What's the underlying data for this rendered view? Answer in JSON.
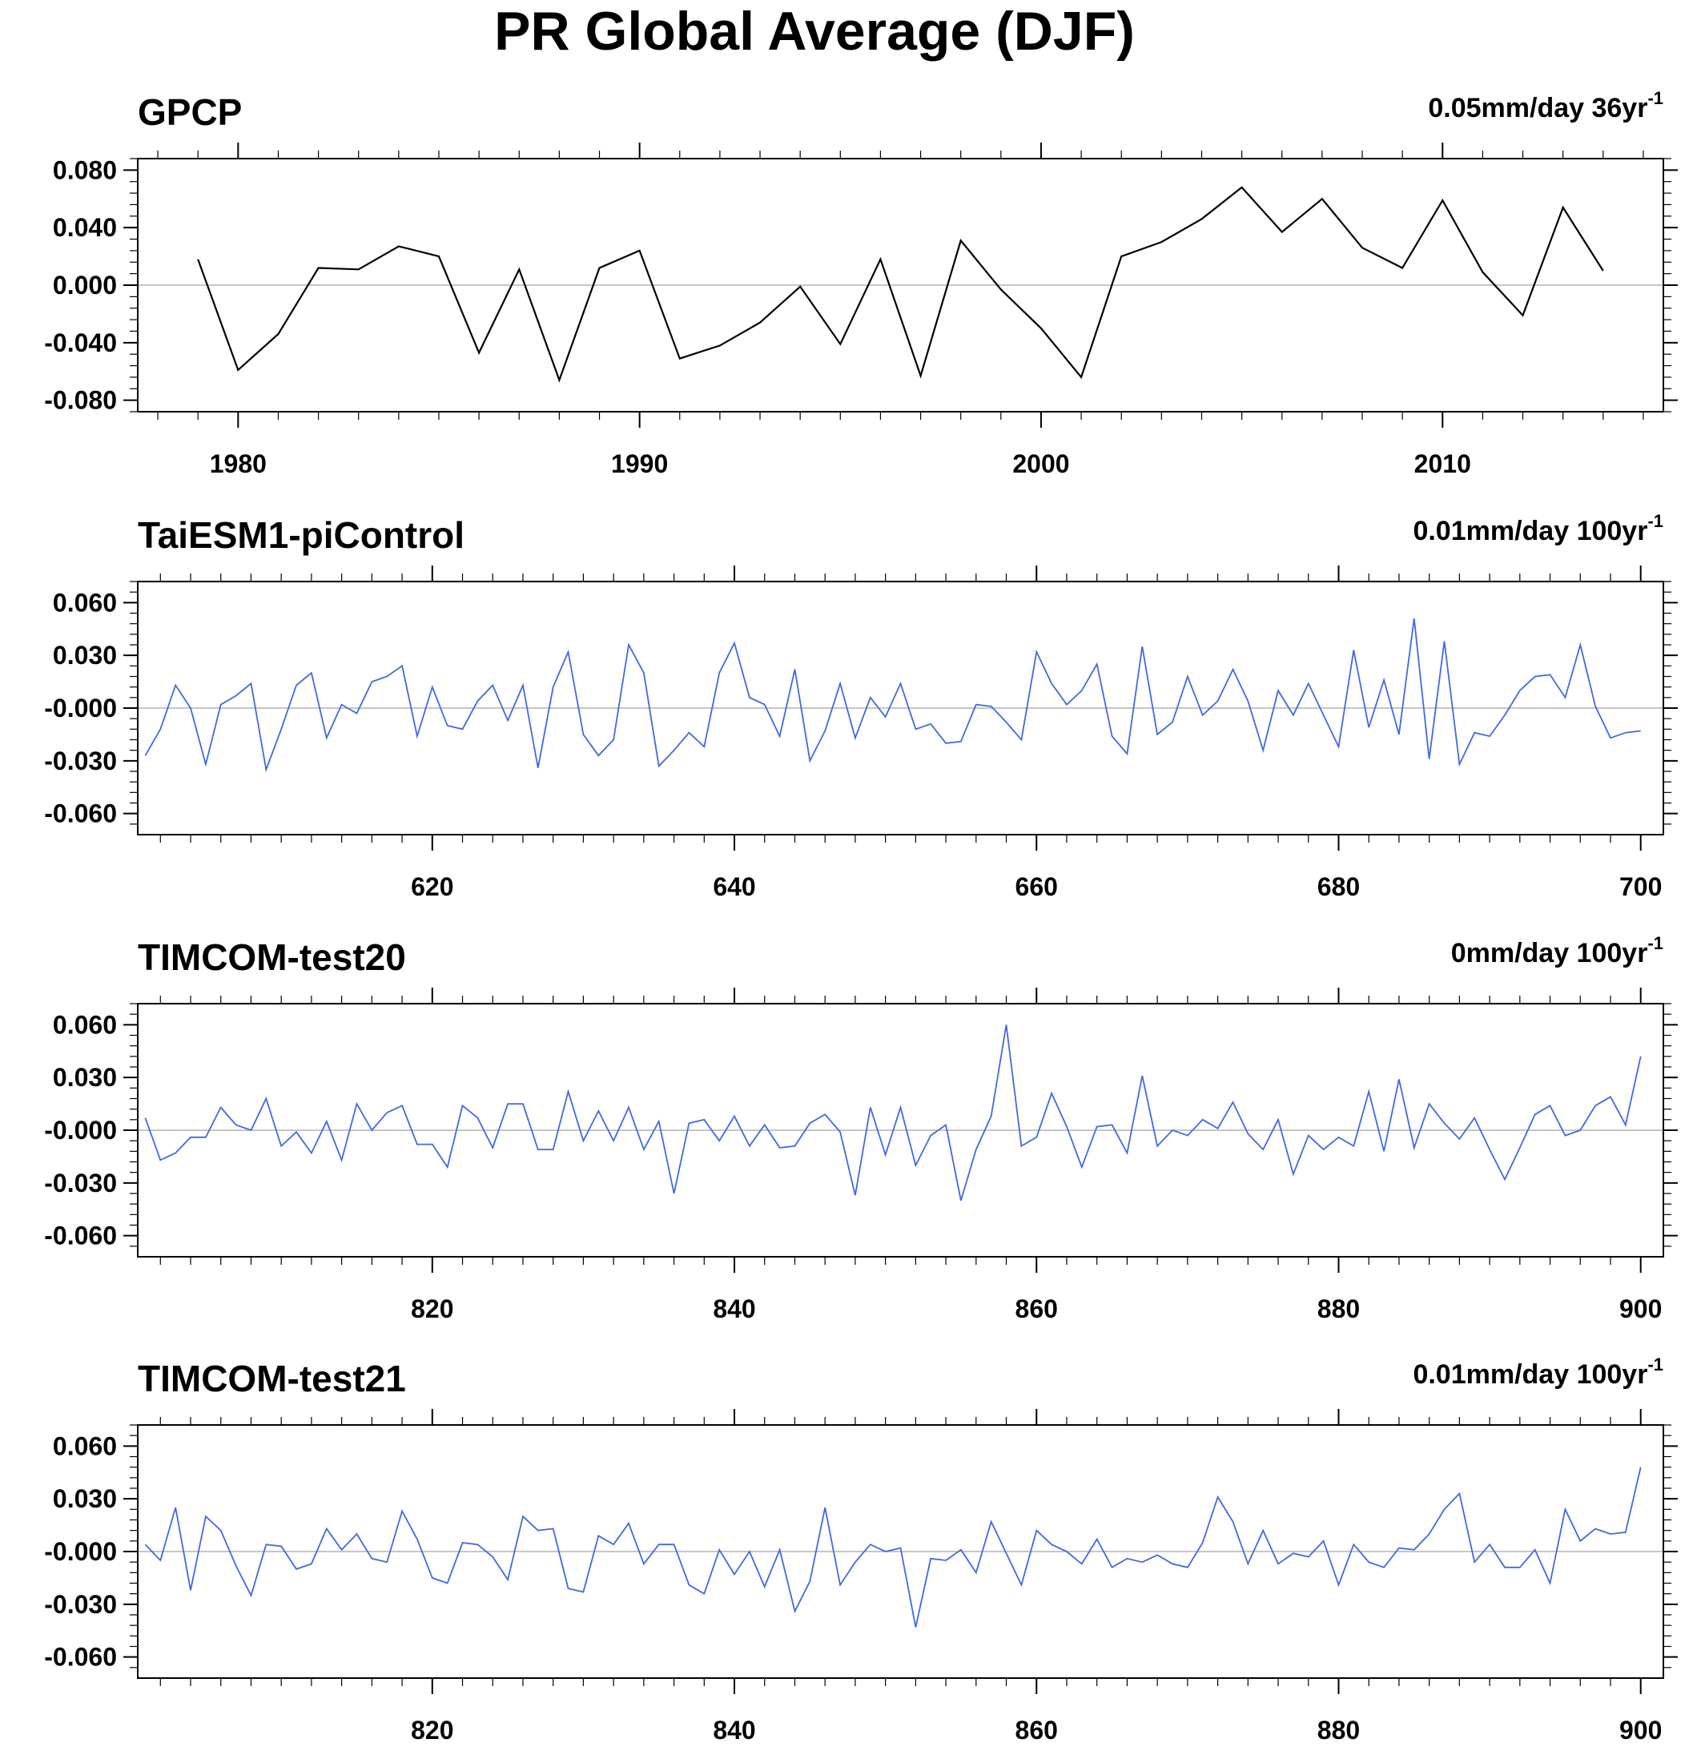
{
  "title": "PR Global Average (DJF)",
  "chart_data": [
    {
      "type": "line",
      "title": "GPCP",
      "trend": {
        "text": "0.05mm/day 36yr",
        "sup": "-1"
      },
      "color": "#000000",
      "xlim": [
        1977.5,
        2015.5
      ],
      "ylim": [
        -0.088,
        0.088
      ],
      "yticks": [
        0.08,
        0.04,
        0.0,
        -0.04,
        -0.08
      ],
      "ytick_labels": [
        "0.080",
        "0.040",
        "0.000",
        "-0.040",
        "-0.080"
      ],
      "ytick_minor_step": 0.008,
      "xticks": [
        1980,
        1990,
        2000,
        2010
      ],
      "xtick_labels": [
        "1980",
        "1990",
        "2000",
        "2010"
      ],
      "xtick_minor_step": 1,
      "x_start": 1979,
      "x_step": 1,
      "values": [
        0.018,
        -0.059,
        -0.034,
        0.012,
        0.011,
        0.027,
        0.02,
        -0.047,
        0.011,
        -0.066,
        0.012,
        0.024,
        -0.051,
        -0.042,
        -0.026,
        -0.001,
        -0.041,
        0.018,
        -0.063,
        0.031,
        -0.003,
        -0.03,
        -0.064,
        0.02,
        0.03,
        0.046,
        0.068,
        0.037,
        0.06,
        0.026,
        0.012,
        0.059,
        0.009,
        -0.021,
        0.054,
        0.01
      ]
    },
    {
      "type": "line",
      "title": "TaiESM1-piControl",
      "trend": {
        "text": "0.01mm/day 100yr",
        "sup": "-1"
      },
      "color": "#4169e1",
      "xlim": [
        600.5,
        701.5
      ],
      "ylim": [
        -0.072,
        0.072
      ],
      "yticks": [
        0.06,
        0.03,
        0.0,
        -0.03,
        -0.06
      ],
      "ytick_labels": [
        "0.060",
        "0.030",
        "-0.000",
        "-0.030",
        "-0.060"
      ],
      "ytick_minor_step": 0.006,
      "xticks": [
        620,
        640,
        660,
        680,
        700
      ],
      "xtick_labels": [
        "620",
        "640",
        "660",
        "680",
        "700"
      ],
      "xtick_minor_step": 2,
      "x_start": 601,
      "x_step": 1,
      "values": [
        -0.027,
        -0.012,
        0.013,
        0.0,
        -0.032,
        0.002,
        0.007,
        0.014,
        -0.035,
        -0.012,
        0.013,
        0.02,
        -0.017,
        0.002,
        -0.003,
        0.015,
        0.018,
        0.024,
        -0.016,
        0.012,
        -0.01,
        -0.012,
        0.004,
        0.013,
        -0.007,
        0.013,
        -0.034,
        0.012,
        0.032,
        -0.015,
        -0.027,
        -0.018,
        0.036,
        0.02,
        -0.033,
        -0.024,
        -0.014,
        -0.022,
        0.02,
        0.037,
        0.006,
        0.002,
        -0.016,
        0.022,
        -0.03,
        -0.013,
        0.014,
        -0.017,
        0.006,
        -0.005,
        0.014,
        -0.012,
        -0.009,
        -0.02,
        -0.019,
        0.002,
        0.001,
        -0.008,
        -0.018,
        0.032,
        0.014,
        0.002,
        0.01,
        0.025,
        -0.016,
        -0.026,
        0.035,
        -0.015,
        -0.008,
        0.018,
        -0.004,
        0.004,
        0.022,
        0.004,
        -0.024,
        0.01,
        -0.004,
        0.014,
        -0.004,
        -0.022,
        0.033,
        -0.011,
        0.016,
        -0.015,
        0.051,
        -0.029,
        0.038,
        -0.032,
        -0.014,
        -0.016,
        -0.004,
        0.01,
        0.018,
        0.019,
        0.006,
        0.036,
        0.001,
        -0.017,
        -0.014,
        -0.013
      ]
    },
    {
      "type": "line",
      "title": "TIMCOM-test20",
      "trend": {
        "text": "0mm/day 100yr",
        "sup": "-1"
      },
      "color": "#4169e1",
      "xlim": [
        800.5,
        901.5
      ],
      "ylim": [
        -0.072,
        0.072
      ],
      "yticks": [
        0.06,
        0.03,
        0.0,
        -0.03,
        -0.06
      ],
      "ytick_labels": [
        "0.060",
        "0.030",
        "-0.000",
        "-0.030",
        "-0.060"
      ],
      "ytick_minor_step": 0.006,
      "xticks": [
        820,
        840,
        860,
        880,
        900
      ],
      "xtick_labels": [
        "820",
        "840",
        "860",
        "880",
        "900"
      ],
      "xtick_minor_step": 2,
      "x_start": 801,
      "x_step": 1,
      "values": [
        0.007,
        -0.017,
        -0.013,
        -0.004,
        -0.004,
        0.013,
        0.003,
        0.0,
        0.018,
        -0.009,
        -0.001,
        -0.013,
        0.005,
        -0.017,
        0.015,
        0.0,
        0.01,
        0.014,
        -0.008,
        -0.008,
        -0.021,
        0.014,
        0.007,
        -0.01,
        0.015,
        0.015,
        -0.011,
        -0.011,
        0.022,
        -0.006,
        0.011,
        -0.006,
        0.013,
        -0.011,
        0.005,
        -0.036,
        0.004,
        0.006,
        -0.006,
        0.008,
        -0.009,
        0.003,
        -0.01,
        -0.009,
        0.004,
        0.009,
        -0.001,
        -0.037,
        0.013,
        -0.014,
        0.013,
        -0.02,
        -0.003,
        0.003,
        -0.04,
        -0.011,
        0.008,
        0.06,
        -0.009,
        -0.004,
        0.021,
        0.002,
        -0.021,
        0.002,
        0.003,
        -0.013,
        0.031,
        -0.009,
        0.0,
        -0.003,
        0.006,
        0.001,
        0.016,
        -0.002,
        -0.011,
        0.006,
        -0.025,
        -0.003,
        -0.011,
        -0.004,
        -0.009,
        0.022,
        -0.012,
        0.029,
        -0.01,
        0.015,
        0.004,
        -0.005,
        0.007,
        -0.011,
        -0.028,
        -0.01,
        0.009,
        0.014,
        -0.003,
        0.0,
        0.014,
        0.019,
        0.003,
        0.042
      ]
    },
    {
      "type": "line",
      "title": "TIMCOM-test21",
      "trend": {
        "text": "0.01mm/day 100yr",
        "sup": "-1"
      },
      "color": "#4169e1",
      "xlim": [
        800.5,
        901.5
      ],
      "ylim": [
        -0.072,
        0.072
      ],
      "yticks": [
        0.06,
        0.03,
        0.0,
        -0.03,
        -0.06
      ],
      "ytick_labels": [
        "0.060",
        "0.030",
        "-0.000",
        "-0.030",
        "-0.060"
      ],
      "ytick_minor_step": 0.006,
      "xticks": [
        820,
        840,
        860,
        880,
        900
      ],
      "xtick_labels": [
        "820",
        "840",
        "860",
        "880",
        "900"
      ],
      "xtick_minor_step": 2,
      "x_start": 801,
      "x_step": 1,
      "values": [
        0.004,
        -0.005,
        0.025,
        -0.022,
        0.02,
        0.012,
        -0.008,
        -0.025,
        0.004,
        0.003,
        -0.01,
        -0.007,
        0.013,
        0.001,
        0.01,
        -0.004,
        -0.006,
        0.023,
        0.007,
        -0.015,
        -0.018,
        0.005,
        0.004,
        -0.003,
        -0.016,
        0.02,
        0.012,
        0.013,
        -0.021,
        -0.023,
        0.009,
        0.004,
        0.016,
        -0.007,
        0.004,
        0.004,
        -0.019,
        -0.024,
        0.001,
        -0.013,
        0.0,
        -0.02,
        0.001,
        -0.034,
        -0.017,
        0.025,
        -0.019,
        -0.006,
        0.004,
        0.0,
        0.002,
        -0.043,
        -0.004,
        -0.005,
        0.001,
        -0.012,
        0.017,
        -0.001,
        -0.019,
        0.012,
        0.004,
        0.0,
        -0.007,
        0.007,
        -0.009,
        -0.004,
        -0.006,
        -0.002,
        -0.007,
        -0.009,
        0.005,
        0.031,
        0.017,
        -0.007,
        0.012,
        -0.007,
        -0.001,
        -0.003,
        0.006,
        -0.019,
        0.004,
        -0.006,
        -0.009,
        0.002,
        0.001,
        0.01,
        0.024,
        0.033,
        -0.006,
        0.004,
        -0.009,
        -0.009,
        0.001,
        -0.018,
        0.024,
        0.006,
        0.013,
        0.01,
        0.011,
        0.048
      ]
    }
  ]
}
